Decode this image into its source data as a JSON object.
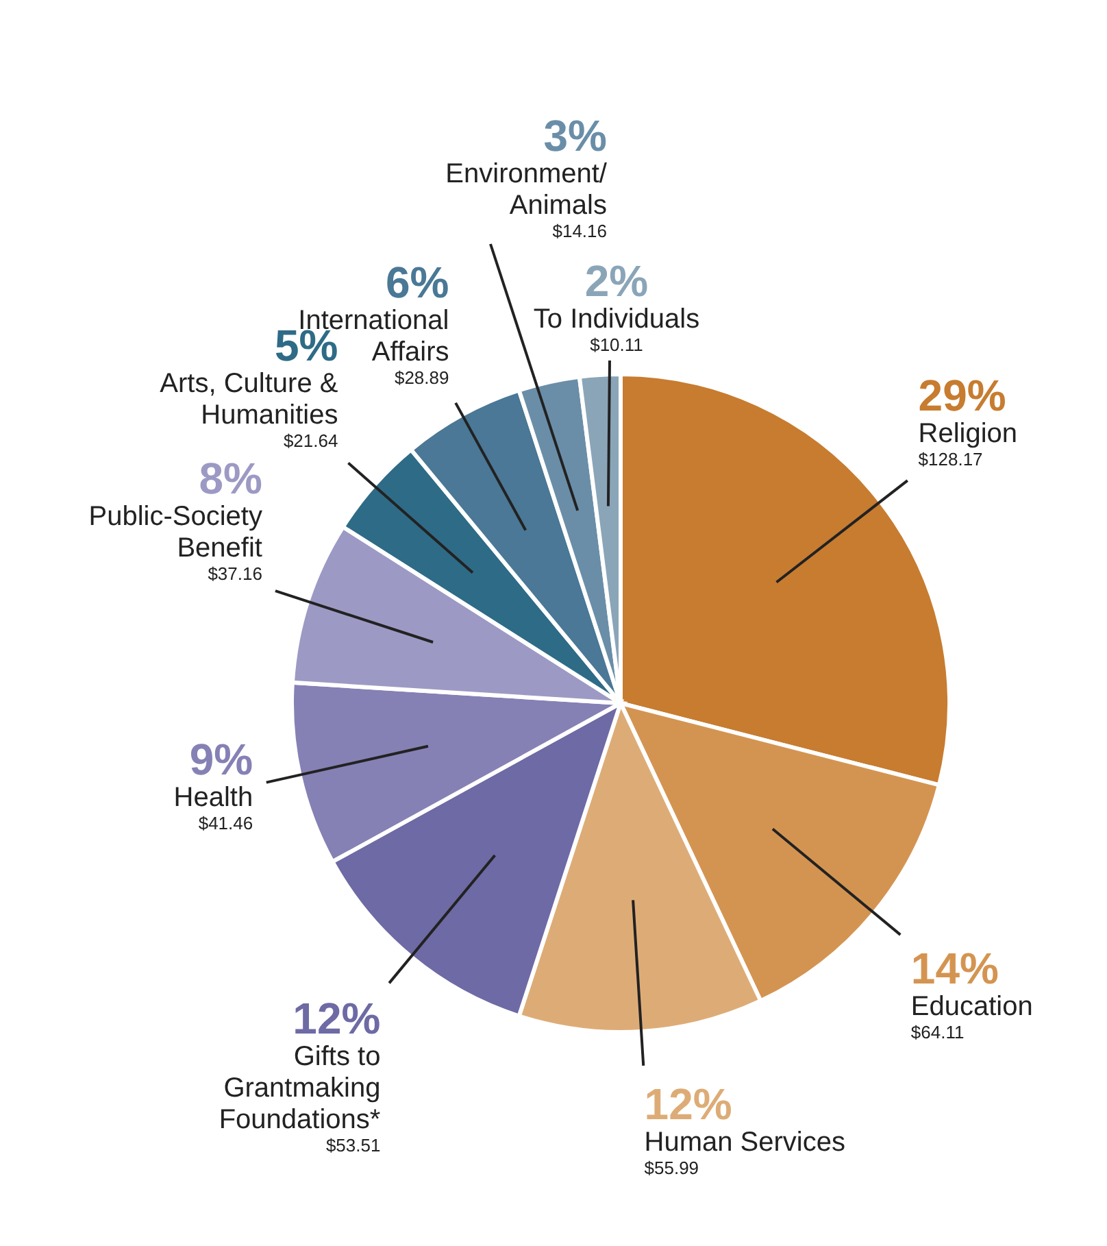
{
  "chart_data": {
    "type": "pie",
    "categories": [
      "Religion",
      "Education",
      "Human Services",
      "Gifts to Grantmaking Foundations*",
      "Health",
      "Public-Society Benefit",
      "Arts, Culture & Humanities",
      "International Affairs",
      "Environment/ Animals",
      "To Individuals"
    ],
    "values": [
      29,
      14,
      12,
      12,
      9,
      8,
      5,
      6,
      3,
      2
    ],
    "colors": [
      "#c77c30",
      "#d49451",
      "#ddac76",
      "#6e6aa5",
      "#8581b5",
      "#9c9ac4",
      "#2e6b87",
      "#4a7896",
      "#6a8ea8",
      "#8ba5b8"
    ],
    "value_labels": [
      "29%\n$128.17",
      "14%\n$64.11",
      "12%\n$55.99",
      "12%\n$53.51",
      "9%\n$41.46",
      "8%\n$37.16",
      "5%\n$21.64",
      "6%\n$28.89",
      "3%\n$14.16",
      "2%\n$10.11"
    ]
  }
}
